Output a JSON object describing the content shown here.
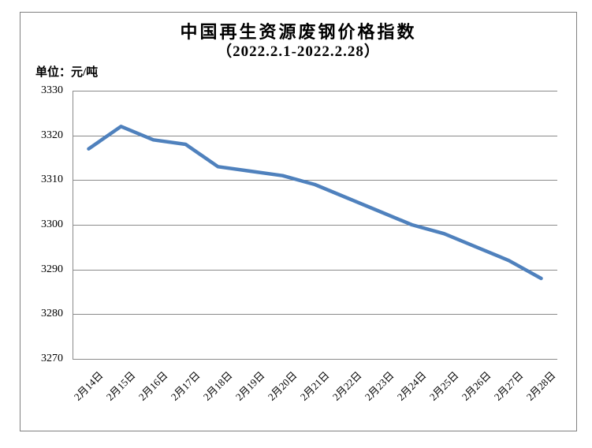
{
  "title": "中国再生资源废钢价格指数",
  "subtitle": "（2022.2.1-2022.2.28）",
  "unit_label": "单位：元/吨",
  "chart_data": {
    "type": "line",
    "title": "中国再生资源废钢价格指数（2022.2.1-2022.2.28）",
    "ylabel": "单位：元/吨",
    "categories": [
      "2月14日",
      "2月15日",
      "2月16日",
      "2月17日",
      "2月18日",
      "2月19日",
      "2月20日",
      "2月21日",
      "2月22日",
      "2月23日",
      "2月24日",
      "2月25日",
      "2月26日",
      "2月27日",
      "2月28日"
    ],
    "values": [
      3317,
      3322,
      3319,
      3318,
      3313,
      3312,
      3311,
      3309,
      3306,
      3303,
      3300,
      3298,
      3295,
      3292,
      3288
    ],
    "ylim": [
      3270,
      3330
    ],
    "ytick_step": 10,
    "grid": true,
    "legend_position": "none",
    "colors": {
      "line": "#4F81BD",
      "gridline": "#8a8a8a",
      "axis": "#8a8a8a",
      "frame_border": "#808080",
      "text": "#000000"
    }
  }
}
